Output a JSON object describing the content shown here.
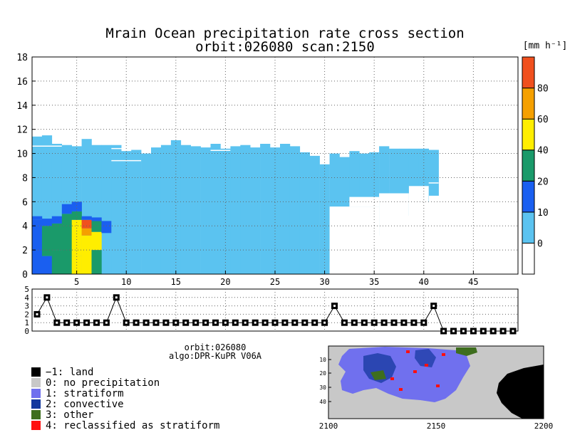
{
  "title": {
    "line1": "Mrain Ocean precipitation rate cross section",
    "line2": "orbit:026080    scan:2150"
  },
  "colorbar": {
    "unit_label": "[mm h⁻¹]",
    "bins": [
      {
        "label": "0",
        "color": "#ffffff"
      },
      {
        "label": "10",
        "color": "#5bc3f0"
      },
      {
        "label": "20",
        "color": "#1a5ff0"
      },
      {
        "label": "40",
        "color": "#1a9a6a"
      },
      {
        "label": "60",
        "color": "#ffee00"
      },
      {
        "label": "80",
        "color": "#f5a000"
      },
      {
        "label": "",
        "color": "#f0501e"
      }
    ]
  },
  "info": {
    "orbit": "orbit:026080",
    "algo": "algo:DPR-KuPR V06A"
  },
  "legend": [
    {
      "label": "−1: land",
      "color": "#000000"
    },
    {
      "label": "0: no precipitation",
      "color": "#c8c8c8"
    },
    {
      "label": "1: stratiform",
      "color": "#7070ee"
    },
    {
      "label": "2: convective",
      "color": "#14389e"
    },
    {
      "label": "3: other",
      "color": "#3e6e1e"
    },
    {
      "label": "4: reclassified as stratiform",
      "color": "#ff1010"
    }
  ],
  "map": {
    "x_ticks": [
      "2100",
      "2150",
      "2200"
    ],
    "y_ticks": [
      "10",
      "20",
      "30",
      "40"
    ]
  },
  "chart_data": [
    {
      "type": "heatmap",
      "title": "Mrain Ocean precipitation rate cross section",
      "xlabel": "",
      "ylabel": "",
      "xlim": [
        0.5,
        49.5
      ],
      "ylim": [
        0,
        18
      ],
      "x_ticks": [
        5,
        10,
        15,
        20,
        25,
        30,
        35,
        40,
        45
      ],
      "y_ticks": [
        0,
        2,
        4,
        6,
        8,
        10,
        12,
        14,
        16,
        18
      ],
      "grid": true,
      "precip_top_height_km": [
        11.4,
        11.5,
        10.8,
        10.7,
        10.6,
        11.2,
        10.7,
        10.7,
        10.7,
        10.2,
        10.3,
        10.0,
        10.5,
        10.7,
        11.1,
        10.7,
        10.6,
        10.5,
        10.8,
        10.4,
        10.6,
        10.7,
        10.5,
        10.8,
        10.5,
        10.8,
        10.6,
        10.1,
        9.8,
        9.1,
        10.0,
        9.7,
        10.2,
        10.0,
        10.1,
        10.6,
        10.4,
        10.4,
        10.4,
        10.4,
        10.3
      ],
      "convective_core": {
        "rays": [
          1,
          7
        ],
        "top_km": 6.0,
        "max_rate_mm_h": 70
      },
      "colorbar_ticks": [
        0,
        10,
        20,
        40,
        60,
        80
      ]
    },
    {
      "type": "line",
      "ylim": [
        0,
        5
      ],
      "y_ticks": [
        0,
        1,
        2,
        3,
        4,
        5
      ],
      "xlim": [
        0.5,
        49.5
      ],
      "values": [
        2,
        4,
        1,
        1,
        1,
        1,
        1,
        1,
        4,
        1,
        1,
        1,
        1,
        1,
        1,
        1,
        1,
        1,
        1,
        1,
        1,
        1,
        1,
        1,
        1,
        1,
        1,
        1,
        1,
        1,
        3,
        1,
        1,
        1,
        1,
        1,
        1,
        1,
        1,
        1,
        3,
        0,
        0,
        0,
        0,
        0,
        0,
        0,
        0
      ]
    }
  ]
}
